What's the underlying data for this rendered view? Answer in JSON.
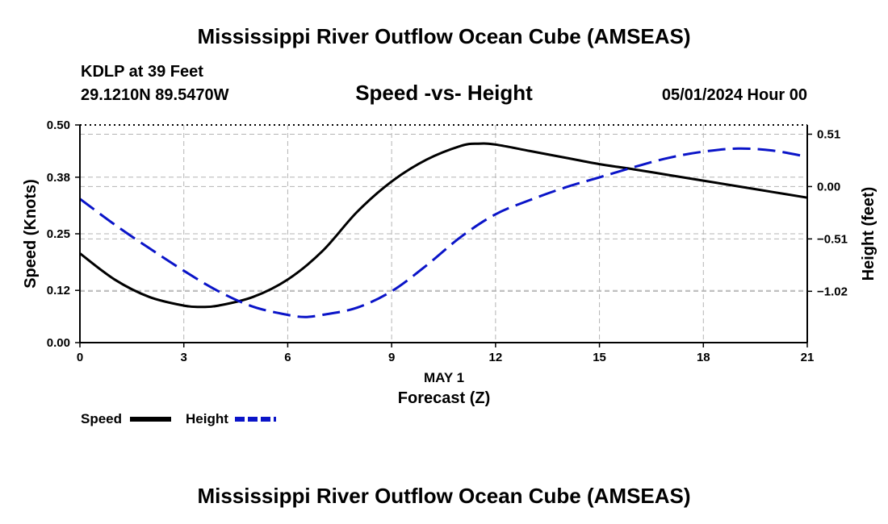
{
  "header": {
    "title": "Mississippi River Outflow Ocean Cube (AMSEAS)",
    "station": "KDLP at 39 Feet",
    "coords": "29.1210N  89.5470W",
    "date": "05/01/2024 Hour 00",
    "footer_title": "Mississippi River Outflow Ocean Cube (AMSEAS)"
  },
  "colors": {
    "speed": "#000000",
    "height": "#0a14c8",
    "grid": "#b4b4b4"
  },
  "chart_data": {
    "type": "line",
    "title": "Speed -vs- Height",
    "xlabel": "Forecast (Z)",
    "xsublabel": "MAY 1",
    "ylabel": "Speed (Knots)",
    "y2label": "Height (feet)",
    "xlim": [
      0,
      21
    ],
    "ylim": [
      0,
      0.5
    ],
    "y2lim": [
      -1.52,
      0.6
    ],
    "xticks": [
      0,
      3,
      6,
      9,
      12,
      15,
      18,
      21
    ],
    "xtick_labels": [
      "0",
      "3",
      "6",
      "9",
      "12",
      "15",
      "18",
      "21"
    ],
    "yticks": [
      0.0,
      0.12,
      0.25,
      0.38,
      0.5
    ],
    "ytick_labels": [
      "0.00",
      "0.12",
      "0.25",
      "0.38",
      "0.50"
    ],
    "y2ticks": [
      -1.02,
      -0.51,
      0.0,
      0.51
    ],
    "y2tick_labels": [
      "−1.02",
      "−0.51",
      "0.00",
      "0.51"
    ],
    "series": [
      {
        "name": "Speed",
        "axis": "left",
        "style": "solid",
        "x": [
          0,
          1,
          2,
          3,
          3.5,
          4,
          5,
          6,
          7,
          8,
          9,
          10,
          11,
          11.5,
          12,
          13,
          14,
          15,
          16,
          17,
          18,
          19,
          20,
          21
        ],
        "values": [
          0.205,
          0.145,
          0.105,
          0.085,
          0.082,
          0.085,
          0.105,
          0.145,
          0.21,
          0.3,
          0.37,
          0.42,
          0.452,
          0.457,
          0.455,
          0.44,
          0.425,
          0.41,
          0.398,
          0.385,
          0.372,
          0.359,
          0.346,
          0.333
        ]
      },
      {
        "name": "Height",
        "axis": "right",
        "style": "dashed",
        "x": [
          0,
          1,
          2,
          3,
          4,
          5,
          6,
          6.5,
          7,
          8,
          9,
          10,
          11,
          12,
          13,
          14,
          15,
          16,
          17,
          18,
          19,
          20,
          21
        ],
        "values": [
          -0.12,
          -0.37,
          -0.6,
          -0.82,
          -1.02,
          -1.17,
          -1.25,
          -1.27,
          -1.25,
          -1.18,
          -1.02,
          -0.77,
          -0.49,
          -0.27,
          -0.13,
          -0.01,
          0.09,
          0.19,
          0.28,
          0.34,
          0.37,
          0.35,
          0.29
        ]
      }
    ],
    "legend": [
      {
        "label": "Speed",
        "style": "solid"
      },
      {
        "label": "Height",
        "style": "dashed"
      }
    ]
  }
}
